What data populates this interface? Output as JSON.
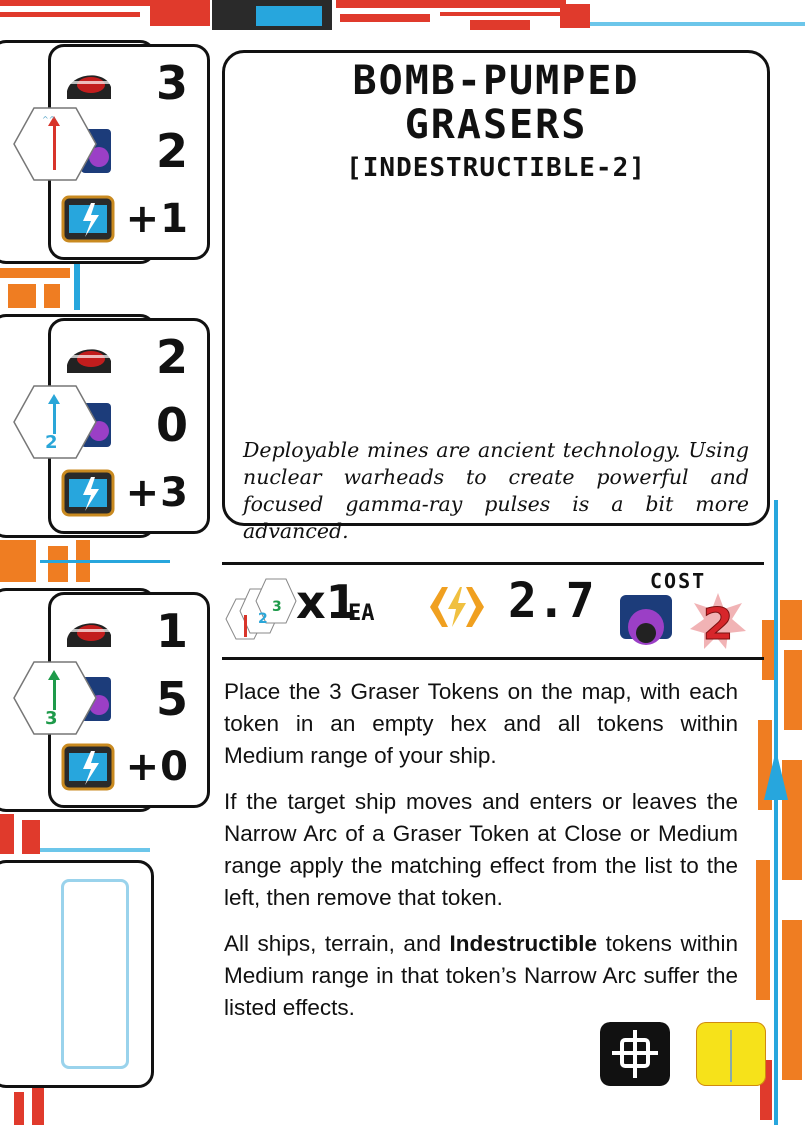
{
  "card": {
    "title_line1": "Bomb-Pumped",
    "title_line2": "Grasers",
    "subtitle": "[Indestructible-2]",
    "flavor": "Deployable mines are ancient technology. Using nuclear warheads to create powerful and focused gamma-ray pulses is a bit more advanced."
  },
  "tokens": [
    {
      "label": "1",
      "damage": "3",
      "crew": "2",
      "modifier": "+1",
      "color": "#d8342a"
    },
    {
      "label": "2",
      "damage": "2",
      "crew": "0",
      "modifier": "+3",
      "color": "#2aa6d8"
    },
    {
      "label": "3",
      "damage": "1",
      "crew": "5",
      "modifier": "+0",
      "color": "#1e9a4a"
    }
  ],
  "stat_bar": {
    "multiplier": "x1",
    "each": "EA",
    "power": "2.7",
    "cost_label": "Cost",
    "cost": "2"
  },
  "rules": {
    "p1": "Place the 3 Graser Tokens on the map, with each token in an empty hex and all tokens within Medium range of your ship.",
    "p2": "If the target ship moves and enters or leaves the Narrow Arc of a Graser Token at Close or Medium range apply the matching effect from the list to the left, then remove that token.",
    "p3_pre": "All ships, terrain, and",
    "p3_bold": "Indestructible",
    "p3_post": "tokens within Medium range in that token’s Narrow Arc suffer the listed effects."
  },
  "colors": {
    "accent_red": "#e03a2c",
    "accent_orange": "#ef7d22",
    "accent_blue": "#27a6dd",
    "cost_red": "#d7262b",
    "power_orange": "#f0a020",
    "keyword_yellow": "#f6e21a"
  },
  "icons": [
    "damage-icon",
    "crew-icon",
    "shield-modifier-icon",
    "graser-token-icon",
    "power-icon",
    "crew-cost-icon",
    "cost-badge-icon",
    "target-lock-icon",
    "narrow-arc-icon"
  ]
}
